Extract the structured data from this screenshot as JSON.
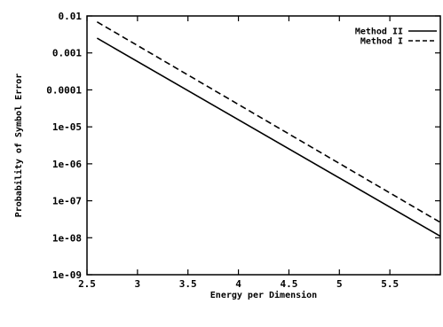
{
  "chart_data": {
    "type": "line",
    "xlabel": "Energy per Dimension",
    "ylabel": "Probability of Symbol Error",
    "xlim": [
      2.5,
      6.0
    ],
    "ylim": [
      1e-09,
      0.01
    ],
    "yscale": "log",
    "xticks": [
      "2.5",
      "3",
      "3.5",
      "4",
      "4.5",
      "5",
      "5.5"
    ],
    "yticks": [
      "0.01",
      "0.001",
      "0.0001",
      "1e-05",
      "1e-06",
      "1e-07",
      "1e-08",
      "1e-09"
    ],
    "legend_position": "top-right",
    "series": [
      {
        "name": "Method II",
        "style": "solid",
        "x": [
          2.6,
          6.0
        ],
        "y": [
          0.0025,
          1.1e-08
        ]
      },
      {
        "name": "Method I",
        "style": "dashed",
        "x": [
          2.6,
          6.0
        ],
        "y": [
          0.0069,
          2.6e-08
        ]
      }
    ]
  }
}
